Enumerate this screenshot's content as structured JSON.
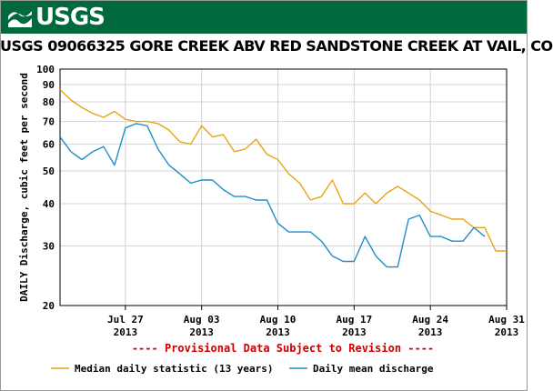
{
  "header": {
    "logo_text": "USGS",
    "logo_icon": "usgs-wave-logo"
  },
  "colors": {
    "banner": "#006a3d",
    "median": "#e8a317",
    "mean": "#1e8fc8",
    "provisional": "#cc0000",
    "grid": "#d4d4d4"
  },
  "chart_data": {
    "type": "line",
    "title": "USGS 09066325 GORE CREEK ABV RED SANDSTONE CREEK AT VAIL, CO",
    "ylabel": "DAILY Discharge, cubic feet per second",
    "xlabel": "",
    "y_scale": "log",
    "ylim": [
      20,
      100
    ],
    "y_ticks": [
      20,
      30,
      40,
      50,
      60,
      70,
      80,
      90,
      100
    ],
    "x_range": [
      "2013-07-21",
      "2013-08-31"
    ],
    "x_ticks": [
      {
        "date": "2013-07-27",
        "line1": "Jul 27",
        "line2": "2013"
      },
      {
        "date": "2013-08-03",
        "line1": "Aug 03",
        "line2": "2013"
      },
      {
        "date": "2013-08-10",
        "line1": "Aug 10",
        "line2": "2013"
      },
      {
        "date": "2013-08-17",
        "line1": "Aug 17",
        "line2": "2013"
      },
      {
        "date": "2013-08-24",
        "line1": "Aug 24",
        "line2": "2013"
      },
      {
        "date": "2013-08-31",
        "line1": "Aug 31",
        "line2": "2013"
      }
    ],
    "grid": true,
    "annotation": "---- Provisional Data Subject to Revision ----",
    "legend_position": "bottom",
    "series": [
      {
        "name": "Median daily statistic (13 years)",
        "color": "#e8a317",
        "points": [
          [
            "2013-07-21",
            87
          ],
          [
            "2013-07-22",
            81
          ],
          [
            "2013-07-23",
            77
          ],
          [
            "2013-07-24",
            74
          ],
          [
            "2013-07-25",
            72
          ],
          [
            "2013-07-26",
            75
          ],
          [
            "2013-07-27",
            71
          ],
          [
            "2013-07-28",
            70
          ],
          [
            "2013-07-29",
            70
          ],
          [
            "2013-07-30",
            69
          ],
          [
            "2013-07-31",
            66
          ],
          [
            "2013-08-01",
            61
          ],
          [
            "2013-08-02",
            60
          ],
          [
            "2013-08-03",
            68
          ],
          [
            "2013-08-04",
            63
          ],
          [
            "2013-08-05",
            64
          ],
          [
            "2013-08-06",
            57
          ],
          [
            "2013-08-07",
            58
          ],
          [
            "2013-08-08",
            62
          ],
          [
            "2013-08-09",
            56
          ],
          [
            "2013-08-10",
            54
          ],
          [
            "2013-08-11",
            49
          ],
          [
            "2013-08-12",
            46
          ],
          [
            "2013-08-13",
            41
          ],
          [
            "2013-08-14",
            42
          ],
          [
            "2013-08-15",
            47
          ],
          [
            "2013-08-16",
            40
          ],
          [
            "2013-08-17",
            40
          ],
          [
            "2013-08-18",
            43
          ],
          [
            "2013-08-19",
            40
          ],
          [
            "2013-08-20",
            43
          ],
          [
            "2013-08-21",
            45
          ],
          [
            "2013-08-22",
            43
          ],
          [
            "2013-08-23",
            41
          ],
          [
            "2013-08-24",
            38
          ],
          [
            "2013-08-25",
            37
          ],
          [
            "2013-08-26",
            36
          ],
          [
            "2013-08-27",
            36
          ],
          [
            "2013-08-28",
            34
          ],
          [
            "2013-08-29",
            34
          ],
          [
            "2013-08-30",
            29
          ],
          [
            "2013-08-31",
            29
          ]
        ]
      },
      {
        "name": "Daily mean discharge",
        "color": "#1e8fc8",
        "points": [
          [
            "2013-07-21",
            63
          ],
          [
            "2013-07-22",
            57
          ],
          [
            "2013-07-23",
            54
          ],
          [
            "2013-07-24",
            57
          ],
          [
            "2013-07-25",
            59
          ],
          [
            "2013-07-26",
            52
          ],
          [
            "2013-07-27",
            67
          ],
          [
            "2013-07-28",
            69
          ],
          [
            "2013-07-29",
            68
          ],
          [
            "2013-07-30",
            58
          ],
          [
            "2013-07-31",
            52
          ],
          [
            "2013-08-01",
            49
          ],
          [
            "2013-08-02",
            46
          ],
          [
            "2013-08-03",
            47
          ],
          [
            "2013-08-04",
            47
          ],
          [
            "2013-08-05",
            44
          ],
          [
            "2013-08-06",
            42
          ],
          [
            "2013-08-07",
            42
          ],
          [
            "2013-08-08",
            41
          ],
          [
            "2013-08-09",
            41
          ],
          [
            "2013-08-10",
            35
          ],
          [
            "2013-08-11",
            33
          ],
          [
            "2013-08-12",
            33
          ],
          [
            "2013-08-13",
            33
          ],
          [
            "2013-08-14",
            31
          ],
          [
            "2013-08-15",
            28
          ],
          [
            "2013-08-16",
            27
          ],
          [
            "2013-08-17",
            27
          ],
          [
            "2013-08-18",
            32
          ],
          [
            "2013-08-19",
            28
          ],
          [
            "2013-08-20",
            26
          ],
          [
            "2013-08-21",
            26
          ],
          [
            "2013-08-22",
            36
          ],
          [
            "2013-08-23",
            37
          ],
          [
            "2013-08-24",
            32
          ],
          [
            "2013-08-25",
            32
          ],
          [
            "2013-08-26",
            31
          ],
          [
            "2013-08-27",
            31
          ],
          [
            "2013-08-28",
            34
          ],
          [
            "2013-08-29",
            32
          ]
        ]
      }
    ]
  }
}
